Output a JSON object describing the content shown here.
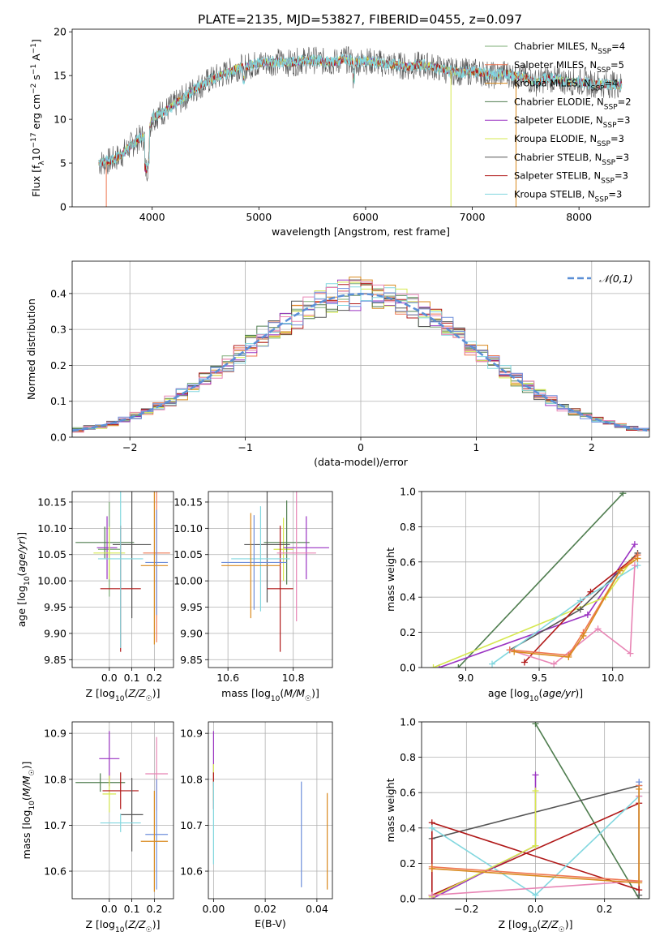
{
  "figure": {
    "title": "PLATE=2135, MJD=53827, FIBERID=0455, z=0.097"
  },
  "colors": {
    "chabrier_miles": "#7dac76",
    "salpeter_miles": "#ee7752",
    "kroupa_miles": "#d98a1e",
    "chabrier_elodie": "#4f7d4f",
    "salpeter_elodie": "#9a33c2",
    "kroupa_elodie": "#d6e84f",
    "chabrier_stelib": "#555555",
    "salpeter_stelib": "#b01818",
    "kroupa_stelib": "#82d7df",
    "blue": "#6f8fdb",
    "pink": "#e885b5",
    "normal": "#5b8fd6"
  },
  "chart_data": [
    {
      "id": "spectrum",
      "type": "line",
      "xlabel": "wavelength [Angstrom, rest frame]",
      "ylabel": "Flux [f_λ 10^-17 erg cm^-2 s^-1 A^-1]",
      "xlim": [
        3250,
        8660
      ],
      "ylim": [
        0,
        20.3
      ],
      "xticks": [
        4000,
        5000,
        6000,
        7000,
        8000
      ],
      "yticks": [
        0,
        5,
        10,
        15,
        20
      ],
      "grid": false,
      "legend_position": "right",
      "legend": [
        {
          "label": "Chabrier MILES, N",
          "sub": "SSP",
          "suffix": "=4",
          "color": "chabrier_miles"
        },
        {
          "label": "Salpeter MILES, N",
          "sub": "SSP",
          "suffix": "=5",
          "color": "salpeter_miles"
        },
        {
          "label": "Kroupa MILES, N",
          "sub": "SSP",
          "suffix": "=4",
          "color": "kroupa_miles"
        },
        {
          "label": "Chabrier ELODIE, N",
          "sub": "SSP",
          "suffix": "=2",
          "color": "chabrier_elodie"
        },
        {
          "label": "Salpeter ELODIE, N",
          "sub": "SSP",
          "suffix": "=3",
          "color": "salpeter_elodie"
        },
        {
          "label": "Kroupa ELODIE, N",
          "sub": "SSP",
          "suffix": "=3",
          "color": "kroupa_elodie"
        },
        {
          "label": "Chabrier STELIB, N",
          "sub": "SSP",
          "suffix": "=3",
          "color": "chabrier_stelib"
        },
        {
          "label": "Salpeter STELIB, N",
          "sub": "SSP",
          "suffix": "=3",
          "color": "salpeter_stelib"
        },
        {
          "label": "Kroupa STELIB, N",
          "sub": "SSP",
          "suffix": "=3",
          "color": "kroupa_stelib"
        }
      ],
      "x": [
        3500,
        3600,
        3700,
        3800,
        3900,
        3950,
        4000,
        4100,
        4200,
        4300,
        4400,
        4500,
        4600,
        4700,
        4800,
        4900,
        5000,
        5100,
        5200,
        5300,
        5400,
        5500,
        5600,
        5700,
        5800,
        5900,
        6000,
        6100,
        6200,
        6300,
        6400,
        6500,
        6600,
        6700,
        6800,
        6900,
        7000,
        7100,
        7200,
        7300,
        7400,
        7500,
        7600,
        7700,
        7800,
        7900,
        8000,
        8100,
        8200,
        8300,
        8400
      ],
      "y": [
        5.0,
        5.2,
        5.8,
        7.0,
        8.0,
        7.8,
        10.2,
        10.8,
        11.6,
        12.5,
        13.5,
        14.2,
        14.8,
        15.3,
        15.9,
        16.1,
        16.4,
        16.5,
        16.6,
        16.4,
        16.7,
        16.8,
        16.6,
        16.5,
        16.9,
        16.5,
        16.7,
        16.5,
        16.3,
        16.2,
        16.0,
        16.2,
        16.1,
        15.8,
        15.5,
        15.4,
        15.5,
        15.3,
        15.0,
        15.3,
        15.0,
        14.7,
        14.2,
        14.7,
        14.5,
        14.3,
        14.3,
        14.1,
        14.0,
        14.0,
        13.9
      ],
      "drops": [
        {
          "x": 6800,
          "to": 0,
          "color": "kroupa_elodie"
        },
        {
          "x": 7410,
          "to": 0,
          "color": "kroupa_miles"
        },
        {
          "x": 3570,
          "to": 0,
          "color": "salpeter_miles"
        }
      ]
    },
    {
      "id": "residuals",
      "type": "step",
      "xlabel": "(data-model)/error",
      "ylabel": "Normed distribution",
      "xlim": [
        -2.5,
        2.5
      ],
      "ylim": [
        0,
        0.49
      ],
      "xticks": [
        -2,
        -1,
        0,
        1,
        2
      ],
      "yticks": [
        0.0,
        0.1,
        0.2,
        0.3,
        0.4
      ],
      "grid": true,
      "legend": [
        {
          "label": "𝒩(0,1)",
          "color": "normal"
        }
      ],
      "bin_width": 0.1,
      "x_start": -2.5
    },
    {
      "id": "age_vs_Z",
      "type": "errorbar",
      "xlabel": "Z [log10(Z/Z☉)]",
      "ylabel": "age [log10(age/yr)]",
      "xlim": [
        -0.165,
        0.285
      ],
      "ylim": [
        9.835,
        10.17
      ],
      "xticks": [
        0.0,
        0.1,
        0.2
      ],
      "yticks": [
        9.85,
        9.9,
        9.95,
        10.0,
        10.05,
        10.1,
        10.15
      ],
      "points": [
        {
          "x": 0.0,
          "y": 10.06,
          "xerr": 0.05,
          "yerr": 0.09,
          "color": "chabrier_miles"
        },
        {
          "x": -0.02,
          "y": 10.073,
          "xerr": 0.13,
          "yerr": 0.03,
          "color": "chabrier_elodie"
        },
        {
          "x": -0.01,
          "y": 10.063,
          "xerr": 0.045,
          "yerr": 0.06,
          "color": "salpeter_elodie"
        },
        {
          "x": 0.0,
          "y": 10.053,
          "xerr": 0.07,
          "yerr": 0.05,
          "color": "kroupa_elodie"
        },
        {
          "x": 0.1,
          "y": 10.069,
          "xerr": 0.085,
          "yerr": 0.14,
          "color": "chabrier_stelib"
        },
        {
          "x": 0.05,
          "y": 9.985,
          "xerr": 0.09,
          "yerr": 0.12,
          "color": "salpeter_stelib"
        },
        {
          "x": 0.05,
          "y": 10.042,
          "xerr": 0.1,
          "yerr": 0.17,
          "color": "kroupa_stelib"
        },
        {
          "x": 0.21,
          "y": 10.053,
          "xerr": 0.06,
          "yerr": 0.17,
          "color": "salpeter_miles"
        },
        {
          "x": 0.21,
          "y": 10.035,
          "xerr": 0.05,
          "yerr": 0.1,
          "color": "blue"
        },
        {
          "x": 0.2,
          "y": 10.029,
          "xerr": 0.06,
          "yerr": 0.15,
          "color": "kroupa_miles"
        }
      ]
    },
    {
      "id": "age_vs_mass",
      "type": "errorbar",
      "xlabel": "mass [log10(M/M☉)]",
      "ylabel": "",
      "xlim": [
        10.54,
        10.92
      ],
      "ylim": [
        9.835,
        10.17
      ],
      "xticks": [
        10.6,
        10.8
      ],
      "yticks": [
        9.85,
        9.9,
        9.95,
        10.0,
        10.05,
        10.1,
        10.15
      ],
      "points": [
        {
          "x": 10.77,
          "y": 10.06,
          "xerr": 0.03,
          "yerr": 0.06,
          "color": "kroupa_elodie"
        },
        {
          "x": 10.78,
          "y": 10.073,
          "xerr": 0.07,
          "yerr": 0.08,
          "color": "chabrier_elodie"
        },
        {
          "x": 10.84,
          "y": 10.063,
          "xerr": 0.07,
          "yerr": 0.06,
          "color": "salpeter_elodie"
        },
        {
          "x": 10.72,
          "y": 10.069,
          "xerr": 0.07,
          "yerr": 0.11,
          "color": "chabrier_stelib"
        },
        {
          "x": 10.76,
          "y": 9.985,
          "xerr": 0.04,
          "yerr": 0.12,
          "color": "salpeter_stelib"
        },
        {
          "x": 10.7,
          "y": 10.042,
          "xerr": 0.09,
          "yerr": 0.1,
          "color": "kroupa_stelib"
        },
        {
          "x": 10.81,
          "y": 10.053,
          "xerr": 0.06,
          "yerr": 0.13,
          "color": "pink"
        },
        {
          "x": 10.68,
          "y": 10.035,
          "xerr": 0.1,
          "yerr": 0.09,
          "color": "blue"
        },
        {
          "x": 10.67,
          "y": 10.029,
          "xerr": 0.09,
          "yerr": 0.1,
          "color": "kroupa_miles"
        }
      ]
    },
    {
      "id": "weight_vs_age",
      "type": "line",
      "xlabel": "age [log10(age/yr)]",
      "ylabel": "mass weight",
      "xlim": [
        8.7,
        10.25
      ],
      "ylim": [
        0.0,
        1.0
      ],
      "xticks": [
        9.0,
        9.5,
        10.0
      ],
      "yticks": [
        0.0,
        0.2,
        0.4,
        0.6,
        0.8,
        1.0
      ],
      "series": [
        {
          "color": "chabrier_elodie",
          "x": [
            8.95,
            10.07
          ],
          "y": [
            0.0,
            0.99
          ]
        },
        {
          "color": "salpeter_elodie",
          "x": [
            8.82,
            9.83,
            10.15
          ],
          "y": [
            0.0,
            0.3,
            0.7
          ]
        },
        {
          "color": "kroupa_elodie",
          "x": [
            8.78,
            9.95,
            10.13
          ],
          "y": [
            0.0,
            0.4,
            0.61
          ]
        },
        {
          "color": "chabrier_stelib",
          "x": [
            9.3,
            9.78,
            10.17
          ],
          "y": [
            0.1,
            0.33,
            0.65
          ]
        },
        {
          "color": "salpeter_stelib",
          "x": [
            9.4,
            9.85,
            10.17
          ],
          "y": [
            0.03,
            0.43,
            0.64
          ]
        },
        {
          "color": "kroupa_stelib",
          "x": [
            9.18,
            9.78,
            10.17
          ],
          "y": [
            0.02,
            0.38,
            0.58
          ]
        },
        {
          "color": "pink",
          "x": [
            9.3,
            9.6,
            9.9,
            10.12,
            10.15
          ],
          "y": [
            0.1,
            0.02,
            0.22,
            0.08,
            0.58
          ]
        },
        {
          "color": "salpeter_miles",
          "x": [
            9.3,
            9.7,
            9.8,
            10.05,
            10.17
          ],
          "y": [
            0.1,
            0.07,
            0.2,
            0.55,
            0.64
          ]
        },
        {
          "color": "kroupa_miles",
          "x": [
            9.33,
            9.7,
            9.8,
            10.05,
            10.17
          ],
          "y": [
            0.09,
            0.06,
            0.18,
            0.55,
            0.62
          ]
        }
      ]
    },
    {
      "id": "mass_vs_Z",
      "type": "errorbar",
      "xlabel": "Z [log10(Z/Z☉)]",
      "ylabel": "mass [log10(M/M☉)]",
      "xlim": [
        -0.165,
        0.285
      ],
      "ylim": [
        10.54,
        10.925
      ],
      "xticks": [
        0.0,
        0.1,
        0.2
      ],
      "yticks": [
        10.6,
        10.7,
        10.8,
        10.9
      ],
      "points": [
        {
          "x": 0.0,
          "y": 10.845,
          "xerr": 0.045,
          "yerr": 0.06,
          "color": "salpeter_elodie"
        },
        {
          "x": -0.04,
          "y": 10.793,
          "xerr": 0.11,
          "yerr": 0.02,
          "color": "chabrier_elodie"
        },
        {
          "x": 0.0,
          "y": 10.768,
          "xerr": 0.03,
          "yerr": 0.04,
          "color": "kroupa_elodie"
        },
        {
          "x": 0.05,
          "y": 10.775,
          "xerr": 0.08,
          "yerr": 0.04,
          "color": "salpeter_stelib"
        },
        {
          "x": 0.1,
          "y": 10.723,
          "xerr": 0.05,
          "yerr": 0.08,
          "color": "chabrier_stelib"
        },
        {
          "x": 0.05,
          "y": 10.705,
          "xerr": 0.09,
          "yerr": 0.02,
          "color": "kroupa_stelib"
        },
        {
          "x": 0.21,
          "y": 10.812,
          "xerr": 0.05,
          "yerr": 0.08,
          "color": "pink"
        },
        {
          "x": 0.21,
          "y": 10.68,
          "xerr": 0.05,
          "yerr": 0.12,
          "color": "blue"
        },
        {
          "x": 0.2,
          "y": 10.665,
          "xerr": 0.06,
          "yerr": 0.11,
          "color": "kroupa_miles"
        }
      ]
    },
    {
      "id": "mass_vs_ebv",
      "type": "errorbar",
      "xlabel": "E(B-V)",
      "ylabel": "",
      "xlim": [
        -0.002,
        0.046
      ],
      "ylim": [
        10.54,
        10.925
      ],
      "xticks": [
        0.0,
        0.02,
        0.04
      ],
      "yticks": [
        10.6,
        10.7,
        10.8,
        10.9
      ],
      "points": [
        {
          "x": 0.0,
          "y": 10.845,
          "xerr": 0,
          "yerr": 0.06,
          "color": "salpeter_elodie"
        },
        {
          "x": 0.0,
          "y": 10.793,
          "xerr": 0,
          "yerr": 0.04,
          "color": "kroupa_elodie"
        },
        {
          "x": 0.0,
          "y": 10.775,
          "xerr": 0,
          "yerr": 0.04,
          "color": "salpeter_stelib"
        },
        {
          "x": 0.0,
          "y": 10.705,
          "xerr": 0,
          "yerr": 0.09,
          "color": "kroupa_stelib"
        },
        {
          "x": 0.034,
          "y": 10.68,
          "xerr": 0,
          "yerr": 0.115,
          "color": "blue"
        },
        {
          "x": 0.044,
          "y": 10.665,
          "xerr": 0,
          "yerr": 0.105,
          "color": "kroupa_miles"
        }
      ]
    },
    {
      "id": "weight_vs_Z",
      "type": "line",
      "xlabel": "Z [log10(Z/Z☉)]",
      "ylabel": "mass weight",
      "xlim": [
        -0.33,
        0.33
      ],
      "ylim": [
        0.0,
        1.0
      ],
      "xticks": [
        -0.2,
        0.0,
        0.2
      ],
      "yticks": [
        0.0,
        0.2,
        0.4,
        0.6,
        0.8,
        1.0
      ],
      "series": [
        {
          "color": "chabrier_elodie",
          "x": [
            0.0,
            0.3
          ],
          "y": [
            0.99,
            0.0
          ]
        },
        {
          "color": "chabrier_stelib",
          "x": [
            -0.3,
            0.3,
            0.3
          ],
          "y": [
            0.34,
            0.64,
            0.02
          ]
        },
        {
          "color": "salpeter_stelib",
          "x": [
            -0.3,
            0.3,
            0.3,
            -0.3,
            -0.3
          ],
          "y": [
            0.02,
            0.54,
            0.05,
            0.43,
            0.02
          ]
        },
        {
          "color": "kroupa_stelib",
          "x": [
            -0.3,
            0.0,
            0.3,
            0.3
          ],
          "y": [
            0.4,
            0.02,
            0.58,
            0.1
          ]
        },
        {
          "color": "salpeter_elodie",
          "x": [
            -0.3,
            0.0,
            0.0
          ],
          "y": [
            0.0,
            0.3,
            0.7
          ]
        },
        {
          "color": "kroupa_elodie",
          "x": [
            -0.3,
            0.0,
            0.0
          ],
          "y": [
            0.01,
            0.3,
            0.61
          ]
        },
        {
          "color": "pink",
          "x": [
            -0.3,
            0.3,
            0.3
          ],
          "y": [
            0.02,
            0.1,
            0.58
          ]
        },
        {
          "color": "salpeter_miles",
          "x": [
            -0.3,
            0.3,
            0.3
          ],
          "y": [
            0.18,
            0.1,
            0.64
          ]
        },
        {
          "color": "kroupa_miles",
          "x": [
            -0.3,
            0.3,
            0.3
          ],
          "y": [
            0.17,
            0.09,
            0.62
          ]
        },
        {
          "color": "blue",
          "x": [
            0.3
          ],
          "y": [
            0.66
          ]
        }
      ]
    }
  ]
}
